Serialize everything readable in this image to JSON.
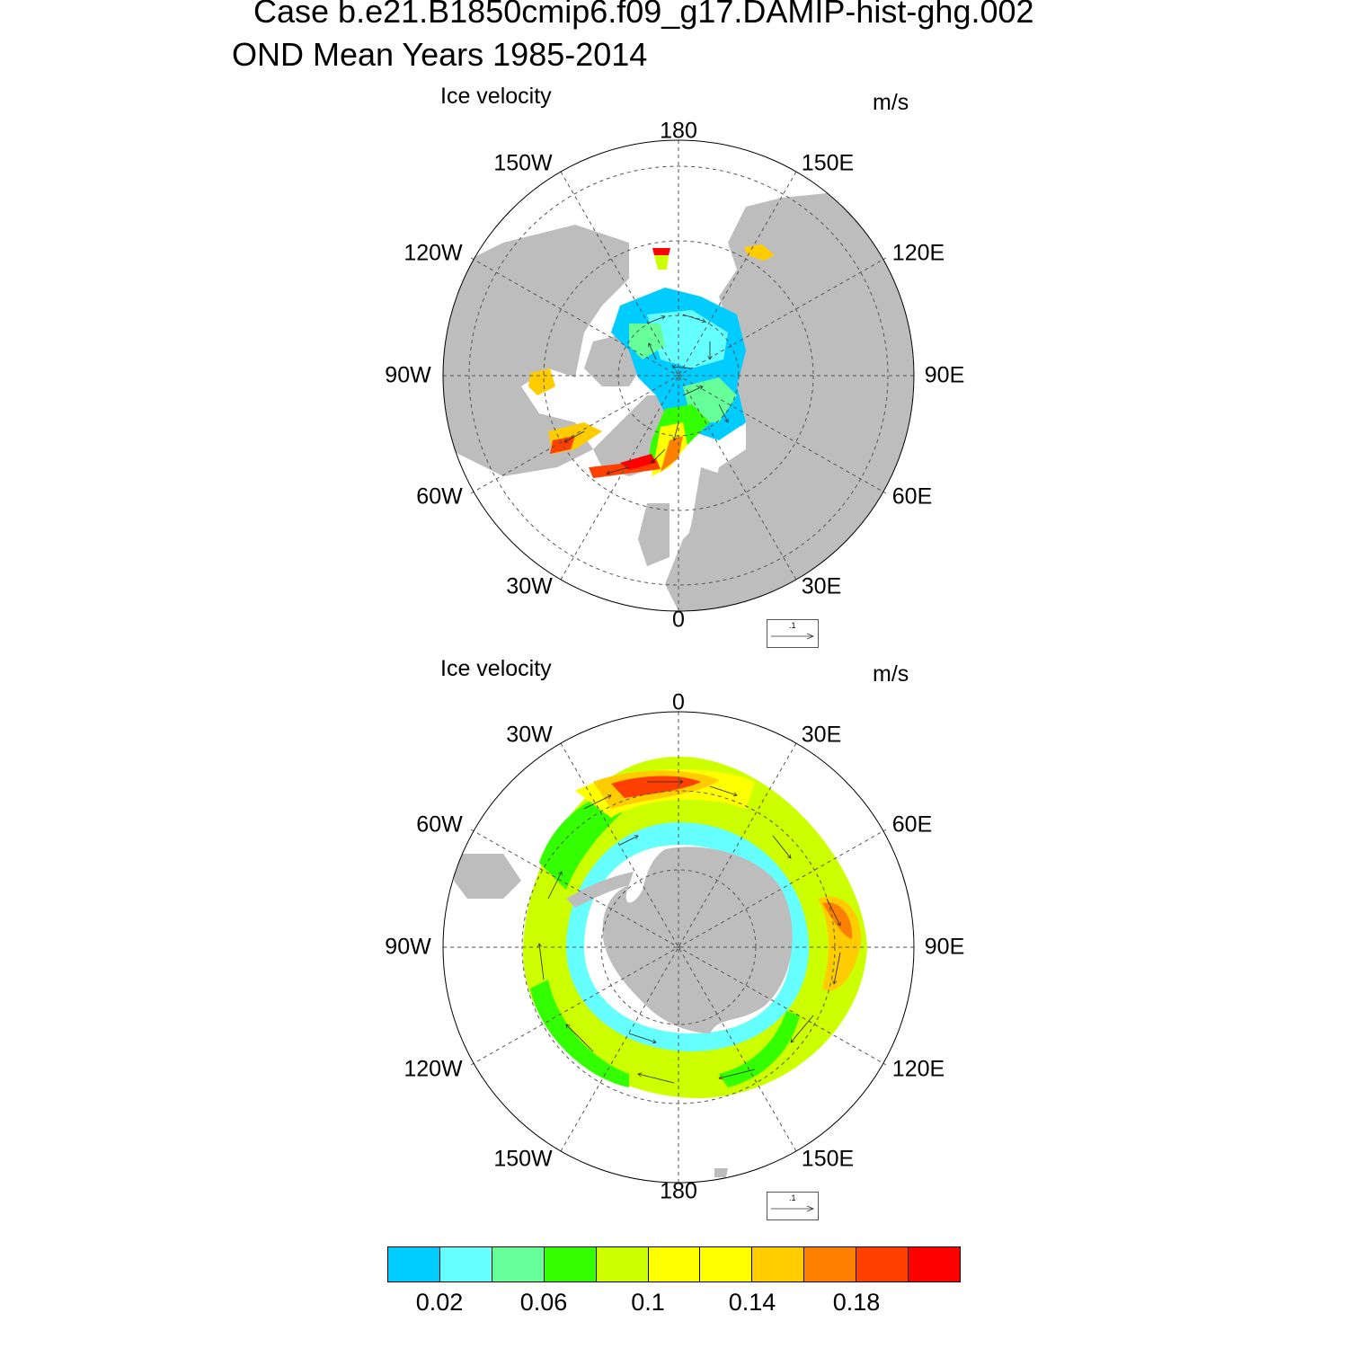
{
  "title": {
    "line1": "Case b.e21.B1850cmip6.f09_g17.DAMIP-hist-ghg.002",
    "line2": "OND Mean   Years 1985-2014"
  },
  "panels": [
    {
      "hemisphere": "north",
      "left_label": "Ice velocity",
      "units": "m/s",
      "ref_vector": ".1",
      "lon_labels": [
        "180",
        "150E",
        "120E",
        "90E",
        "60E",
        "30E",
        "0",
        "30W",
        "60W",
        "90W",
        "120W",
        "150W"
      ]
    },
    {
      "hemisphere": "south",
      "left_label": "Ice velocity",
      "units": "m/s",
      "ref_vector": ".1",
      "lon_labels": [
        "0",
        "30E",
        "60E",
        "90E",
        "120E",
        "150E",
        "180",
        "150W",
        "120W",
        "90W",
        "60W",
        "30W"
      ]
    }
  ],
  "colors": {
    "land": "#bdbdbd",
    "palette": [
      "#00ccff",
      "#66ffff",
      "#66ff99",
      "#33ff00",
      "#ccff00",
      "#ffff00",
      "#ffff00",
      "#ffcc00",
      "#ff8000",
      "#ff4000",
      "#ff0000"
    ]
  },
  "colorbar": {
    "labels": [
      "0.02",
      "0.06",
      "0.1",
      "0.14",
      "0.18"
    ]
  }
}
